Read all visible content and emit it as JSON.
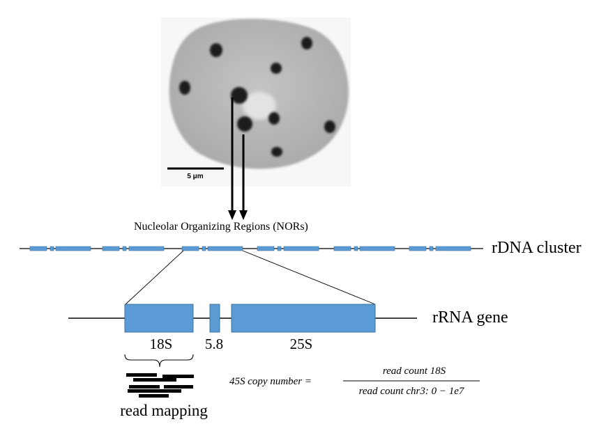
{
  "micrograph": {
    "scale_bar_label": "5 μm"
  },
  "labels": {
    "nors": "Nucleolar Organizing Regions (NORs)",
    "rdna_cluster": "rDNA cluster",
    "rrna_gene": "rRNA gene",
    "read_mapping": "read mapping"
  },
  "gene_segments": {
    "s18": "18S",
    "s5_8": "5.8",
    "s25": "25S"
  },
  "formula": {
    "lhs": "45S copy number =",
    "numerator": "read count 18S",
    "denominator": "read count chr3: 0 − 1e7"
  },
  "colors": {
    "feature_blue": "#5b9bd5",
    "feature_border": "#41719c",
    "line": "#000000",
    "cell": "#b9b9b9"
  }
}
